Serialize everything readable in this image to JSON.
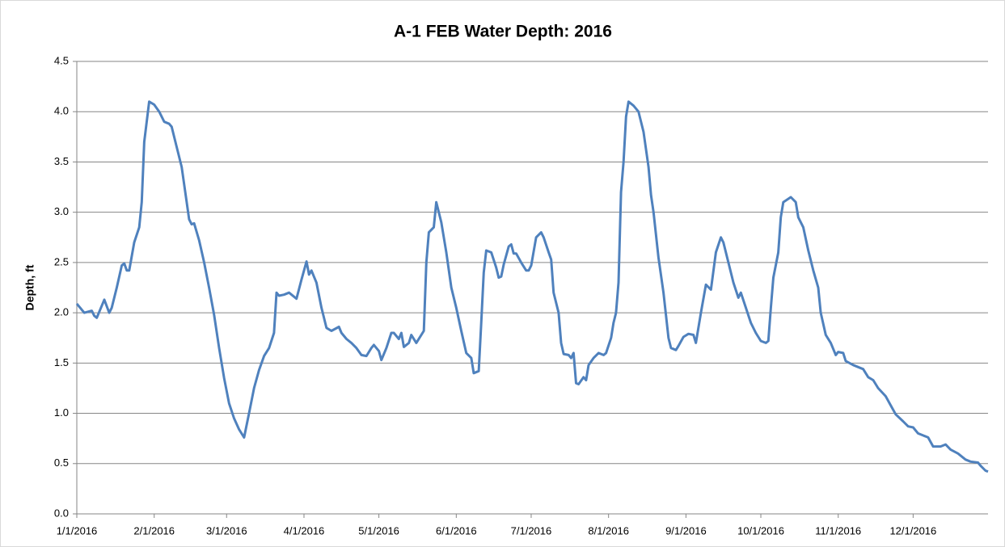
{
  "chart_data": {
    "type": "line",
    "title": "A-1 FEB Water Depth: 2016",
    "y_label": "Depth, ft",
    "color": "#4f81bd",
    "grid": true,
    "x": [
      "1/1/2016",
      "1/3/2016",
      "1/4/2016",
      "1/7/2016",
      "1/8/2016",
      "1/9/2016",
      "1/11/2016",
      "1/12/2016",
      "1/14/2016",
      "1/15/2016",
      "1/17/2016",
      "1/19/2016",
      "1/20/2016",
      "1/21/2016",
      "1/22/2016",
      "1/24/2016",
      "1/26/2016",
      "1/27/2016",
      "1/28/2016",
      "1/30/2016",
      "2/1/2016",
      "2/3/2016",
      "2/5/2016",
      "2/7/2016",
      "2/8/2016",
      "2/10/2016",
      "2/12/2016",
      "2/14/2016",
      "2/15/2016",
      "2/16/2016",
      "2/17/2016",
      "2/19/2016",
      "2/21/2016",
      "2/23/2016",
      "2/25/2016",
      "2/27/2016",
      "2/29/2016",
      "3/2/2016",
      "3/4/2016",
      "3/6/2016",
      "3/8/2016",
      "3/10/2016",
      "3/12/2016",
      "3/14/2016",
      "3/16/2016",
      "3/18/2016",
      "3/20/2016",
      "3/21/2016",
      "3/22/2016",
      "3/24/2016",
      "3/26/2016",
      "3/29/2016",
      "3/31/2016",
      "4/2/2016",
      "4/3/2016",
      "4/4/2016",
      "4/6/2016",
      "4/8/2016",
      "4/10/2016",
      "4/12/2016",
      "4/15/2016",
      "4/16/2016",
      "4/18/2016",
      "4/20/2016",
      "4/22/2016",
      "4/24/2016",
      "4/26/2016",
      "4/28/2016",
      "4/29/2016",
      "5/1/2016",
      "5/2/2016",
      "5/4/2016",
      "5/6/2016",
      "5/7/2016",
      "5/9/2016",
      "5/10/2016",
      "5/11/2016",
      "5/13/2016",
      "5/14/2016",
      "5/16/2016",
      "5/19/2016",
      "5/20/2016",
      "5/21/2016",
      "5/23/2016",
      "5/24/2016",
      "5/26/2016",
      "5/28/2016",
      "5/30/2016",
      "6/1/2016",
      "6/3/2016",
      "6/5/2016",
      "6/7/2016",
      "6/8/2016",
      "6/10/2016",
      "6/11/2016",
      "6/12/2016",
      "6/13/2016",
      "6/15/2016",
      "6/17/2016",
      "6/18/2016",
      "6/19/2016",
      "6/20/2016",
      "6/22/2016",
      "6/23/2016",
      "6/24/2016",
      "6/25/2016",
      "6/27/2016",
      "6/29/2016",
      "6/30/2016",
      "7/1/2016",
      "7/3/2016",
      "7/5/2016",
      "7/6/2016",
      "7/8/2016",
      "7/9/2016",
      "7/10/2016",
      "7/12/2016",
      "7/13/2016",
      "7/14/2016",
      "7/16/2016",
      "7/17/2016",
      "7/18/2016",
      "7/19/2016",
      "7/20/2016",
      "7/22/2016",
      "7/23/2016",
      "7/24/2016",
      "7/26/2016",
      "7/28/2016",
      "7/30/2016",
      "7/31/2016",
      "8/2/2016",
      "8/3/2016",
      "8/4/2016",
      "8/5/2016",
      "8/6/2016",
      "8/7/2016",
      "8/8/2016",
      "8/9/2016",
      "8/11/2016",
      "8/13/2016",
      "8/15/2016",
      "8/17/2016",
      "8/18/2016",
      "8/19/2016",
      "8/21/2016",
      "8/23/2016",
      "8/25/2016",
      "8/26/2016",
      "8/28/2016",
      "8/29/2016",
      "8/31/2016",
      "9/2/2016",
      "9/4/2016",
      "9/5/2016",
      "9/7/2016",
      "9/9/2016",
      "9/11/2016",
      "9/13/2016",
      "9/15/2016",
      "9/16/2016",
      "9/18/2016",
      "9/20/2016",
      "9/22/2016",
      "9/23/2016",
      "9/25/2016",
      "9/27/2016",
      "9/29/2016",
      "10/1/2016",
      "10/3/2016",
      "10/4/2016",
      "10/5/2016",
      "10/6/2016",
      "10/8/2016",
      "10/9/2016",
      "10/10/2016",
      "10/13/2016",
      "10/15/2016",
      "10/16/2016",
      "10/18/2016",
      "10/20/2016",
      "10/22/2016",
      "10/24/2016",
      "10/25/2016",
      "10/27/2016",
      "10/29/2016",
      "10/31/2016",
      "11/1/2016",
      "11/3/2016",
      "11/4/2016",
      "11/7/2016",
      "11/9/2016",
      "11/11/2016",
      "11/13/2016",
      "11/15/2016",
      "11/17/2016",
      "11/20/2016",
      "11/22/2016",
      "11/24/2016",
      "11/27/2016",
      "11/29/2016",
      "12/1/2016",
      "12/3/2016",
      "12/5/2016",
      "12/7/2016",
      "12/9/2016",
      "12/12/2016",
      "12/14/2016",
      "12/16/2016",
      "12/19/2016",
      "12/22/2016",
      "12/24/2016",
      "12/27/2016",
      "12/28/2016",
      "12/30/2016",
      "12/31/2016"
    ],
    "values": [
      2.09,
      2.03,
      2.0,
      2.02,
      1.97,
      1.95,
      2.07,
      2.13,
      2.0,
      2.05,
      2.25,
      2.47,
      2.49,
      2.42,
      2.42,
      2.7,
      2.85,
      3.1,
      3.7,
      4.1,
      4.07,
      4.0,
      3.9,
      3.88,
      3.85,
      3.65,
      3.45,
      3.1,
      2.93,
      2.88,
      2.89,
      2.72,
      2.5,
      2.25,
      1.98,
      1.65,
      1.35,
      1.1,
      0.95,
      0.84,
      0.76,
      1.0,
      1.25,
      1.43,
      1.57,
      1.65,
      1.8,
      2.2,
      2.17,
      2.18,
      2.2,
      2.14,
      2.33,
      2.51,
      2.38,
      2.42,
      2.3,
      2.05,
      1.85,
      1.82,
      1.86,
      1.8,
      1.74,
      1.7,
      1.65,
      1.58,
      1.57,
      1.65,
      1.68,
      1.62,
      1.53,
      1.65,
      1.8,
      1.8,
      1.74,
      1.8,
      1.66,
      1.7,
      1.78,
      1.7,
      1.82,
      2.5,
      2.8,
      2.85,
      3.1,
      2.9,
      2.6,
      2.25,
      2.05,
      1.82,
      1.6,
      1.55,
      1.4,
      1.42,
      1.9,
      2.4,
      2.62,
      2.6,
      2.45,
      2.35,
      2.36,
      2.48,
      2.66,
      2.68,
      2.59,
      2.59,
      2.5,
      2.42,
      2.42,
      2.47,
      2.75,
      2.8,
      2.75,
      2.6,
      2.53,
      2.2,
      2.0,
      1.7,
      1.59,
      1.58,
      1.55,
      1.6,
      1.3,
      1.29,
      1.36,
      1.33,
      1.48,
      1.55,
      1.6,
      1.58,
      1.6,
      1.75,
      1.9,
      2.0,
      2.3,
      3.2,
      3.5,
      3.95,
      4.1,
      4.06,
      4.0,
      3.8,
      3.45,
      3.17,
      3.0,
      2.55,
      2.2,
      1.75,
      1.65,
      1.63,
      1.67,
      1.76,
      1.79,
      1.78,
      1.7,
      2.0,
      2.28,
      2.23,
      2.6,
      2.75,
      2.7,
      2.5,
      2.3,
      2.15,
      2.2,
      2.05,
      1.9,
      1.8,
      1.72,
      1.7,
      1.72,
      2.05,
      2.35,
      2.6,
      2.95,
      3.1,
      3.15,
      3.1,
      2.95,
      2.85,
      2.62,
      2.42,
      2.25,
      2.0,
      1.78,
      1.7,
      1.58,
      1.61,
      1.6,
      1.52,
      1.48,
      1.46,
      1.44,
      1.36,
      1.33,
      1.25,
      1.17,
      1.08,
      0.99,
      0.92,
      0.87,
      0.86,
      0.8,
      0.78,
      0.76,
      0.67,
      0.67,
      0.69,
      0.64,
      0.6,
      0.54,
      0.52,
      0.51,
      0.48,
      0.43,
      0.42
    ],
    "xlim": [
      "1/1/2016",
      "12/31/2016"
    ],
    "xticks": [
      "1/1/2016",
      "2/1/2016",
      "3/1/2016",
      "4/1/2016",
      "5/1/2016",
      "6/1/2016",
      "7/1/2016",
      "8/1/2016",
      "9/1/2016",
      "10/1/2016",
      "11/1/2016",
      "12/1/2016"
    ],
    "ylim": [
      0,
      4.5
    ],
    "yticks": [
      {
        "value": 0,
        "label": "0.0"
      },
      0.5,
      {
        "value": 1,
        "label": "1.0"
      },
      1.5,
      {
        "value": 2,
        "label": "2.0"
      },
      2.5,
      {
        "value": 3,
        "label": "3.0"
      },
      3.5,
      {
        "value": 4,
        "label": "4.0"
      },
      4.5
    ]
  }
}
